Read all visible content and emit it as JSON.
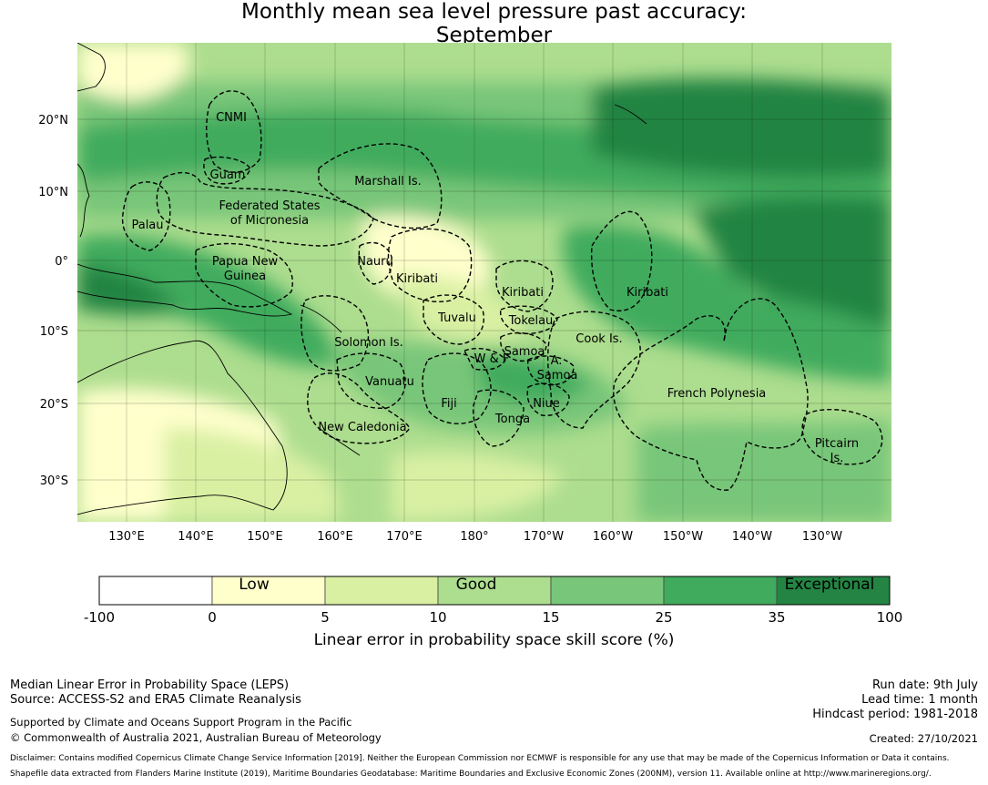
{
  "title": {
    "line1": "Monthly mean sea level pressure past accuracy:",
    "line2": "September"
  },
  "map": {
    "lat_ticks": [
      "20°N",
      "10°N",
      "0°",
      "10°S",
      "20°S",
      "30°S"
    ],
    "lon_ticks": [
      "130°E",
      "140°E",
      "150°E",
      "160°E",
      "170°E",
      "180°",
      "170°W",
      "160°W",
      "150°W",
      "140°W",
      "130°W"
    ],
    "region_labels": [
      "CNMI",
      "Guam",
      "Marshall Is.",
      "Federated States",
      "of Micronesia",
      "Palau",
      "Papua New",
      "Guinea",
      "Nauru",
      "Kiribati",
      "Kiribati",
      "Kiribati",
      "Tuvalu",
      "Tokelau",
      "Solomon Is.",
      "Samoa",
      "W & F",
      "A.",
      "Samoa",
      "Cook Is.",
      "Vanuatu",
      "Fiji",
      "Niue",
      "Tonga",
      "French Polynesia",
      "New Caledonia",
      "Pitcairn",
      "Is."
    ],
    "colors": {
      "lowest": "#ffffff",
      "low": "#ffffcc",
      "low_mid": "#d9f0a3",
      "good": "#addd8e",
      "good_high": "#78c679",
      "high": "#41ab5d",
      "exceptional": "#238443"
    }
  },
  "colorbar": {
    "ticks": [
      "-100",
      "0",
      "5",
      "10",
      "15",
      "25",
      "35",
      "100"
    ],
    "categories": [
      "Low",
      "Good",
      "Exceptional"
    ],
    "label": "Linear error in probability space skill score (%)",
    "bins": [
      {
        "from": -100,
        "to": 0,
        "color": "#ffffff"
      },
      {
        "from": 0,
        "to": 5,
        "color": "#ffffcc"
      },
      {
        "from": 5,
        "to": 10,
        "color": "#d9f0a3"
      },
      {
        "from": 10,
        "to": 15,
        "color": "#addd8e"
      },
      {
        "from": 15,
        "to": 25,
        "color": "#78c679"
      },
      {
        "from": 25,
        "to": 35,
        "color": "#41ab5d"
      },
      {
        "from": 35,
        "to": 100,
        "color": "#238443"
      }
    ]
  },
  "footer": {
    "left_line1": "Median Linear Error in Probability Space (LEPS)",
    "left_line2": "Source: ACCESS-S2 and ERA5 Climate Reanalysis",
    "left_line3": "Supported by Climate and Oceans Support Program in the Pacific",
    "left_line4": "© Commonwealth of Australia 2021, Australian Bureau of Meteorology",
    "right_line1": "Run date: 9th July",
    "right_line2": "Lead time: 1 month",
    "right_line3": "Hindcast period: 1981-2018",
    "right_line4": "Created: 27/10/2021",
    "disclaimer1": "Disclaimer: Contains modified Copernicus Climate Change Service Information [2019]. Neither the European Commission nor ECMWF is responsible for any use that may be made of the Copernicus Information or Data it contains.",
    "disclaimer2": "Shapefile data extracted from Flanders Marine Institute (2019), Maritime Boundaries Geodatabase: Maritime Boundaries and Exclusive Economic Zones (200NM), version 11. Available online at http://www.marineregions.org/."
  }
}
